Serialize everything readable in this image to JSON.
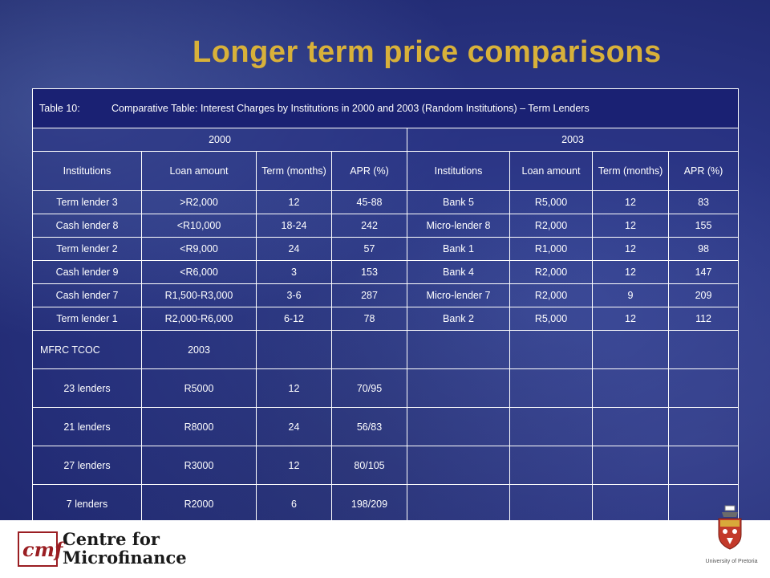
{
  "title": "Longer term price comparisons",
  "table": {
    "caption_label": "Table 10:",
    "caption_text": "Comparative Table: Interest Charges by Institutions in 2000 and 2003 (Random Institutions) – Term Lenders",
    "year_2000": "2000",
    "year_2003": "2003",
    "headers": [
      "Institutions",
      "Loan amount",
      "Term (months)",
      "APR (%)",
      "Institutions",
      "Loan amount",
      "Term (months)",
      "APR (%)"
    ],
    "rows": [
      [
        "Term lender 3",
        ">R2,000",
        "12",
        "45-88",
        "Bank 5",
        "R5,000",
        "12",
        "83"
      ],
      [
        "Cash lender 8",
        "<R10,000",
        "18-24",
        "242",
        "Micro-lender 8",
        "R2,000",
        "12",
        "155"
      ],
      [
        "Term lender 2",
        "<R9,000",
        "24",
        "57",
        "Bank 1",
        "R1,000",
        "12",
        "98"
      ],
      [
        "Cash lender 9",
        "<R6,000",
        "3",
        "153",
        "Bank 4",
        "R2,000",
        "12",
        "147"
      ],
      [
        "Cash lender 7",
        "R1,500-R3,000",
        "3-6",
        "287",
        "Micro-lender 7",
        "R2,000",
        "9",
        "209"
      ],
      [
        "Term lender 1",
        "R2,000-R6,000",
        "6-12",
        "78",
        "Bank 2",
        "R5,000",
        "12",
        "112"
      ]
    ],
    "tcoc_rows": [
      [
        "MFRC TCOC",
        "2003",
        "",
        ""
      ],
      [
        "23 lenders",
        "R5000",
        "12",
        "70/95"
      ],
      [
        "21 lenders",
        "R8000",
        "24",
        "56/83"
      ],
      [
        "27 lenders",
        "R3000",
        "12",
        "80/105"
      ],
      [
        "7 lenders",
        "R2000",
        "6",
        "198/209"
      ]
    ]
  },
  "footer": {
    "logo_mark": "cmf",
    "org_line1": "Centre for",
    "org_line2": "Microfinance",
    "university": "University of Pretoria"
  },
  "colors": {
    "title": "#d8b13a",
    "background": "#2a3584",
    "caption_bg": "#1a2173",
    "logo_red": "#9a1e22"
  },
  "icons": [
    "cmf-logo-icon",
    "university-crest-icon"
  ]
}
